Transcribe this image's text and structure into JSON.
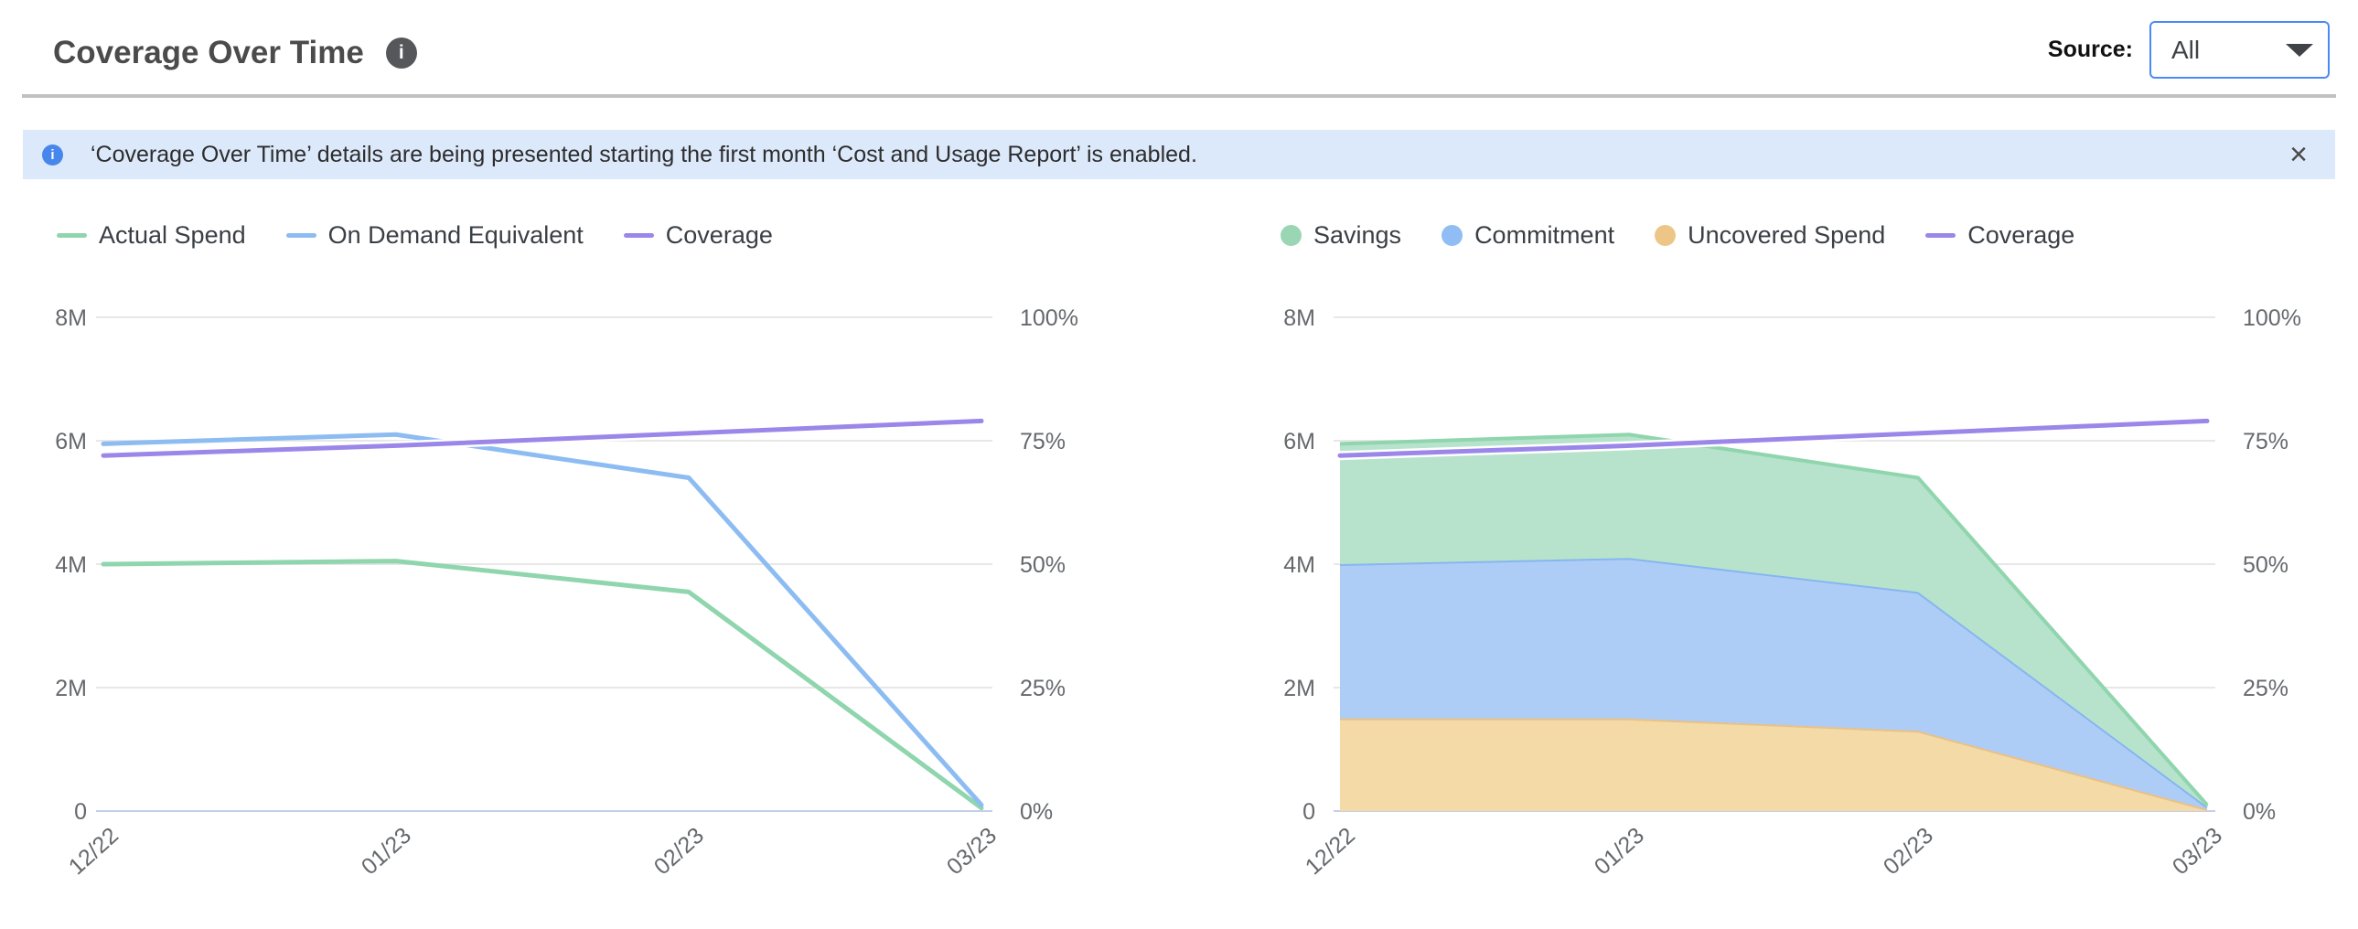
{
  "header": {
    "title": "Coverage Over Time",
    "source_label": "Source:",
    "source_value": "All"
  },
  "icons": {
    "info_glyph": "i",
    "close_glyph": "×",
    "select_caret": "triangle-down"
  },
  "banner": {
    "text": "‘Coverage Over Time’ details are being presented starting the first month ‘Cost and Usage Report’ is enabled."
  },
  "theme": {
    "accent_blue": "#4a8af4",
    "banner_bg": "#dce9fb",
    "banner_icon_blue": "#4787ec",
    "divider_gray": "#c1c1c1",
    "gridline": "#e7e7e7",
    "zero_line": "#c4cfe9",
    "axis_text": "#65686d",
    "legend_text": "#3a3f45",
    "title_text": "#4b4b4b",
    "green": "#8fd5ad",
    "blue": "#8cbcf2",
    "purple": "#9b86e9",
    "orange": "#eac185"
  },
  "chart_data": [
    {
      "type": "line",
      "title": "",
      "x": [
        "12/22",
        "01/23",
        "02/23",
        "03/23"
      ],
      "left_axis": {
        "ticks": [
          "0",
          "2M",
          "4M",
          "6M",
          "8M"
        ],
        "min": 0,
        "max": 8,
        "unit": "M",
        "grid": true
      },
      "right_axis": {
        "ticks": [
          "0%",
          "25%",
          "50%",
          "75%",
          "100%"
        ],
        "min": 0,
        "max": 100,
        "unit": "%"
      },
      "legend_position": "top-left",
      "series": [
        {
          "name": "Actual Spend",
          "unit": "M",
          "color": "#8fd5ad",
          "values": [
            4.0,
            4.05,
            3.55,
            0.05
          ]
        },
        {
          "name": "On Demand Equivalent",
          "unit": "M",
          "color": "#8cbcf2",
          "values": [
            5.95,
            6.1,
            5.4,
            0.1
          ]
        },
        {
          "name": "Coverage",
          "unit": "%",
          "color": "#9b86e9",
          "values": [
            72,
            74,
            76.5,
            79
          ]
        }
      ],
      "legend": [
        {
          "label": "Actual Spend",
          "swatch": "line",
          "color": "#8fd5ad"
        },
        {
          "label": "On Demand Equivalent",
          "swatch": "line",
          "color": "#8cbcf2"
        },
        {
          "label": "Coverage",
          "swatch": "line",
          "color": "#9b86e9"
        }
      ]
    },
    {
      "type": "area",
      "title": "",
      "x": [
        "12/22",
        "01/23",
        "02/23",
        "03/23"
      ],
      "left_axis": {
        "ticks": [
          "0",
          "2M",
          "4M",
          "6M",
          "8M"
        ],
        "min": 0,
        "max": 8,
        "unit": "M",
        "grid": true
      },
      "right_axis": {
        "ticks": [
          "0%",
          "25%",
          "50%",
          "75%",
          "100%"
        ],
        "min": 0,
        "max": 100,
        "unit": "%"
      },
      "legend_position": "top-left",
      "series": [
        {
          "name": "Uncovered Spend",
          "unit": "M",
          "stack": true,
          "color": "#eac185",
          "fill": "#f4daa6",
          "values": [
            1.5,
            1.5,
            1.3,
            0.03
          ]
        },
        {
          "name": "Commitment",
          "unit": "M",
          "stack": true,
          "color": "#86b6f1",
          "fill": "#aecdf6",
          "values": [
            2.5,
            2.6,
            2.25,
            0.04
          ]
        },
        {
          "name": "Savings",
          "unit": "M",
          "stack": true,
          "color": "#8fd5ad",
          "fill": "#b7e3cc",
          "values": [
            1.95,
            2.0,
            1.85,
            0.03
          ]
        },
        {
          "name": "Coverage",
          "unit": "%",
          "color": "#9b86e9",
          "values": [
            72,
            74,
            76.5,
            79
          ]
        }
      ],
      "legend": [
        {
          "label": "Savings",
          "swatch": "dot",
          "color": "#9ad6b4"
        },
        {
          "label": "Commitment",
          "swatch": "dot",
          "color": "#90bdf3"
        },
        {
          "label": "Uncovered Spend",
          "swatch": "dot",
          "color": "#edc687"
        },
        {
          "label": "Coverage",
          "swatch": "line",
          "color": "#9b86e9"
        }
      ]
    }
  ]
}
